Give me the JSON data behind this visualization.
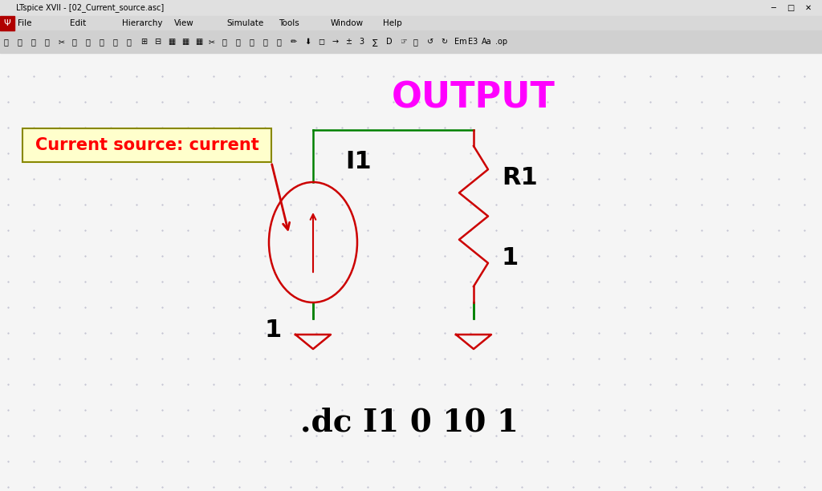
{
  "bg_color": "#f0f0f0",
  "canvas_color": "#f8f8f8",
  "title_bar_text": "LTspice XVII - [02_Current_source.asc]",
  "menu_items": [
    "File",
    "Edit",
    "Hierarchy",
    "View",
    "Simulate",
    "Tools",
    "Window",
    "Help"
  ],
  "output_label": "OUTPUT",
  "output_color": "#ff00ff",
  "label_box_text": "Current source: current",
  "label_box_bg": "#ffffcc",
  "label_box_edge": "#cccc00",
  "label_text_color": "#ff0000",
  "component_color_green": "#008000",
  "component_color_red": "#cc0000",
  "text_color_black": "#000000",
  "dot_color": "#c0c0d0",
  "dc_command": ".dc I1 0 10 1",
  "I1_label": "I1",
  "R1_label": "R1",
  "val_1a": "1",
  "val_1b": "1"
}
